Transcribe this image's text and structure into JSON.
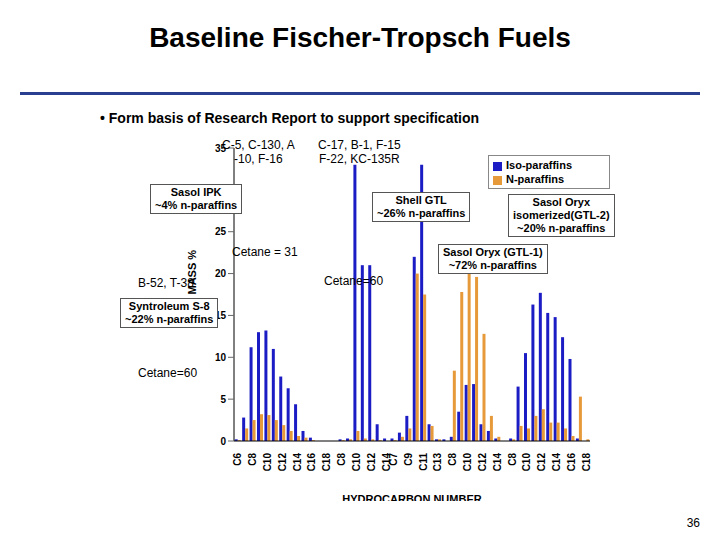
{
  "title": "Baseline Fischer-Tropsch Fuels",
  "subtitle": "• Form basis of Research Report to support specification",
  "page_number": "36",
  "chart_data": {
    "type": "bar",
    "x_label": "HYDROCARBON NUMBER",
    "y_label": "MASS %",
    "categories": [
      "C6",
      null,
      "C8",
      null,
      "C10",
      null,
      "C12",
      null,
      "C14",
      null,
      "C16",
      null,
      "C18",
      null,
      "C8",
      null,
      "C10",
      null,
      "C12",
      null,
      "C14",
      "C7",
      null,
      "C9",
      null,
      "C11",
      null,
      "C13",
      null,
      "C8",
      null,
      "C10",
      null,
      "C12",
      null,
      "C14",
      null,
      "C8",
      null,
      "C10",
      null,
      "C12",
      null,
      "C14",
      null,
      "C16",
      null,
      "C18"
    ],
    "series": [
      {
        "name": "Iso-paraffins",
        "color": "#1c1cc4",
        "values": [
          0.2,
          2.8,
          11.2,
          13,
          13.2,
          11,
          7.7,
          6.3,
          4.4,
          1.2,
          0.4,
          0,
          0,
          0,
          0.2,
          0.3,
          33,
          21,
          21,
          2,
          0.3,
          0.3,
          1,
          3,
          22,
          33,
          2,
          0.2,
          0.2,
          0.5,
          3.5,
          6.7,
          6.8,
          2,
          1.2,
          0.3,
          0,
          0.3,
          6.5,
          10.5,
          16.3,
          17.7,
          15.3,
          14.8,
          12.4,
          9.8,
          0.3,
          0
        ]
      },
      {
        "name": "N-paraffins",
        "color": "#e69a3a",
        "values": [
          0.1,
          1.5,
          2.5,
          3.2,
          3.1,
          2.5,
          1.9,
          1.2,
          0.6,
          0.4,
          0.1,
          0,
          0,
          0,
          0.1,
          0.2,
          1.2,
          0.3,
          0.2,
          0.1,
          0,
          0.1,
          0.5,
          1.5,
          20,
          17.5,
          1.8,
          0.2,
          0,
          8.4,
          17.8,
          21.5,
          19.6,
          12.8,
          3,
          0.5,
          0,
          0.2,
          1.8,
          1.5,
          3,
          3.8,
          2.2,
          2.2,
          1.5,
          0.6,
          5.3,
          0.2
        ]
      }
    ],
    "ylim": [
      0,
      35
    ],
    "yticks": [
      0,
      5,
      10,
      15,
      20,
      25,
      30,
      35
    ],
    "grid": false,
    "legend": "upper right",
    "annotations": [
      "C-5, C-130, A\n-10, F-16",
      "C-17, B-1, F-15\nF-22, KC-135R",
      "Sasol IPK\n~4% n-paraffins",
      "Shell GTL\n~26% n-paraffins",
      "Cetane = 31",
      "Sasol Oryx (GTL-1)\n~72% n-paraffins",
      "Cetane=60",
      "B-52, T-38",
      "Syntroleum S-8\n~22% n-paraffins",
      "Sasol Oryx\nisomerized(GTL-2)\n~20% n-paraffins",
      "Cetane=60"
    ]
  }
}
